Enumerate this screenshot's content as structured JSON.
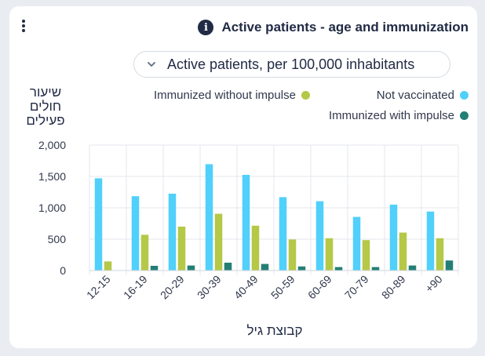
{
  "card": {
    "title": "Active patients - age and immunization",
    "info_icon": "info-icon",
    "menu_icon": "kebab-menu-icon"
  },
  "dropdown": {
    "value": "Active patients, per 100,000 inhabitants",
    "icon": "chevron-down-icon"
  },
  "colors": {
    "not_vaccinated": "#50d0fa",
    "without_impulse": "#b5c847",
    "with_impulse": "#237f74"
  },
  "chart_data": {
    "type": "bar",
    "ylabel": "שיעור חולים פעילים",
    "xlabel": "קבוצת גיל",
    "ylim": [
      0,
      2000
    ],
    "yticks": [
      "0",
      "500",
      "1,000",
      "1,500",
      "2,000"
    ],
    "categories": [
      "12-15",
      "16-19",
      "20-29",
      "30-39",
      "40-49",
      "50-59",
      "60-69",
      "70-79",
      "80-89",
      "+90"
    ],
    "grid": true,
    "legend_position": "top-right",
    "series": [
      {
        "name": "Not vaccinated",
        "values": [
          1470,
          1185,
          1225,
          1695,
          1525,
          1170,
          1105,
          855,
          1050,
          940
        ]
      },
      {
        "name": "Immunized without impulse",
        "values": [
          145,
          570,
          700,
          905,
          715,
          495,
          515,
          485,
          605,
          515
        ]
      },
      {
        "name": "Immunized with impulse",
        "values": [
          0,
          75,
          80,
          125,
          105,
          65,
          55,
          55,
          80,
          160
        ]
      }
    ]
  }
}
